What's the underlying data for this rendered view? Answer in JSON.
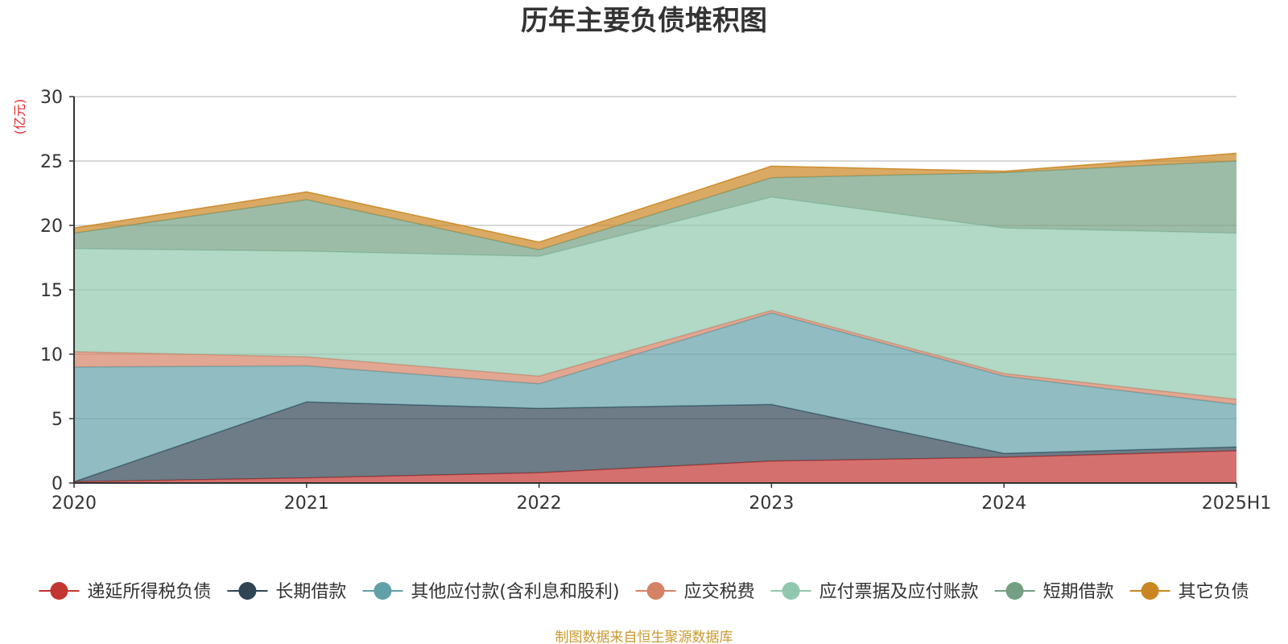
{
  "chart_data": {
    "type": "area",
    "title": "历年主要负债堆积图",
    "ylabel": "(亿元)",
    "xlabel": "",
    "categories": [
      "2020",
      "2021",
      "2022",
      "2023",
      "2024",
      "2025H1"
    ],
    "ylim": [
      0,
      30
    ],
    "yticks": [
      0,
      5,
      10,
      15,
      20,
      25,
      30
    ],
    "grid": true,
    "stacked": true,
    "legend_position": "bottom",
    "series": [
      {
        "name": "递延所得税负债",
        "color": "#c23531",
        "values": [
          0.1,
          0.4,
          0.8,
          1.7,
          2.0,
          2.5
        ]
      },
      {
        "name": "长期借款",
        "color": "#2f4554",
        "values": [
          0.0,
          5.9,
          5.0,
          4.4,
          0.3,
          0.3
        ]
      },
      {
        "name": "其他应付款(含利息和股利)",
        "color": "#61a0a8",
        "values": [
          8.9,
          2.8,
          1.9,
          7.1,
          6.0,
          3.3
        ]
      },
      {
        "name": "应交税费",
        "color": "#d48265",
        "values": [
          1.2,
          0.7,
          0.6,
          0.2,
          0.2,
          0.4
        ]
      },
      {
        "name": "应付票据及应付账款",
        "color": "#91c7ae",
        "values": [
          8.0,
          8.2,
          9.3,
          8.8,
          11.3,
          12.9
        ]
      },
      {
        "name": "短期借款",
        "color": "#749f83",
        "values": [
          1.2,
          4.0,
          0.5,
          1.5,
          4.3,
          5.6
        ]
      },
      {
        "name": "其它负债",
        "color": "#ca8622",
        "values": [
          0.4,
          0.6,
          0.6,
          0.9,
          0.1,
          0.6
        ]
      }
    ]
  },
  "footer": {
    "source_text": "制图数据来自恒生聚源数据库"
  }
}
